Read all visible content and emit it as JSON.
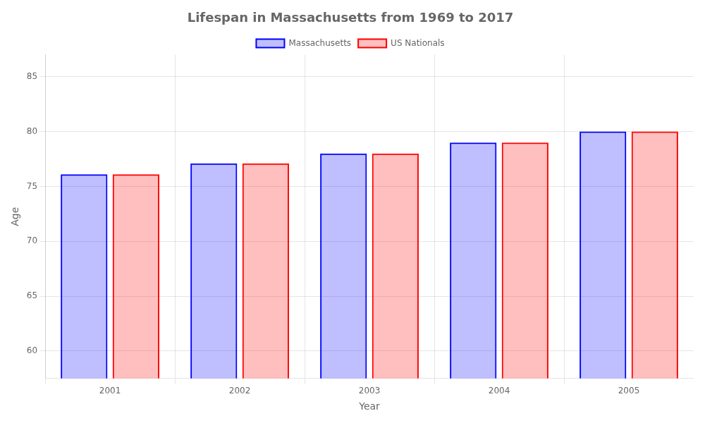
{
  "chart_data": {
    "type": "bar",
    "title": "Lifespan in Massachusetts from 1969 to 2017",
    "xlabel": "Year",
    "ylabel": "Age",
    "categories": [
      "2001",
      "2002",
      "2003",
      "2004",
      "2005"
    ],
    "series": [
      {
        "name": "Massachusetts",
        "color": "#0000ff",
        "values": [
          76.1,
          77.1,
          78.0,
          79.0,
          80.0
        ]
      },
      {
        "name": "US Nationals",
        "color": "#ff0000",
        "values": [
          76.1,
          77.1,
          78.0,
          79.0,
          80.0
        ]
      }
    ],
    "ylim": [
      57.5,
      87
    ],
    "yticks": [
      60,
      65,
      70,
      75,
      80,
      85
    ],
    "grid": true,
    "legend": "top"
  }
}
